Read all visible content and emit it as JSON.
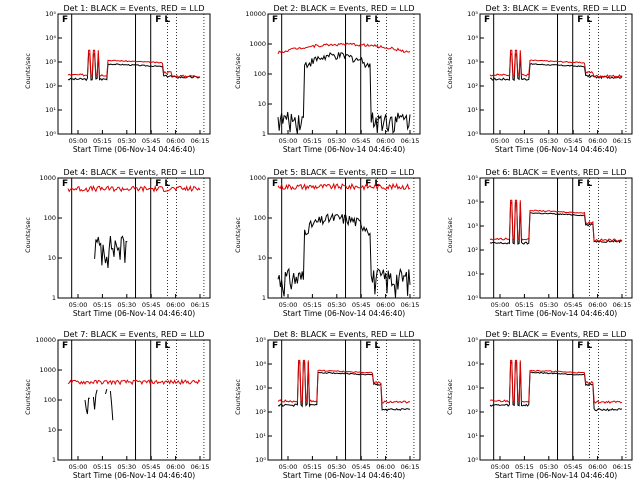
{
  "window": {
    "title": ""
  },
  "colors": {
    "events": "#000000",
    "lld": "#dd0000"
  },
  "panel_labels": {
    "edge_left": "F",
    "edge_right": "F",
    "edge_right2": "L"
  },
  "chart_data": [
    {
      "type": "line",
      "title": "Det 1: BLACK = Events, RED = LLD",
      "xlabel": "Start Time (06-Nov-14 04:46:40)",
      "ylabel": "Counts/sec",
      "scale": "log",
      "ylim": [
        1,
        100000
      ],
      "yticks": [
        "10⁰",
        "10¹",
        "10²",
        "10³",
        "10⁴",
        "10⁵"
      ],
      "xticks": [
        "05:00",
        "05:15",
        "05:30",
        "05:45",
        "06:00",
        "06:15"
      ],
      "series": [
        {
          "name": "Events",
          "kind": "det_spikes",
          "base": 150,
          "plateau": 500,
          "end": 180
        },
        {
          "name": "LLD",
          "kind": "det_spikes",
          "base": 220,
          "plateau": 700,
          "end": 200
        }
      ]
    },
    {
      "type": "line",
      "title": "Det 2: BLACK = Events, RED = LLD",
      "xlabel": "Start Time (06-Nov-14 04:46:40)",
      "ylabel": "Counts/sec",
      "scale": "log",
      "ylim": [
        1,
        10000
      ],
      "yticks": [
        "1",
        "10",
        "100",
        "1000",
        "10000"
      ],
      "xticks": [
        "05:00",
        "05:15",
        "05:30",
        "05:45",
        "06:00",
        "06:15"
      ],
      "series": [
        {
          "name": "Events",
          "kind": "hump",
          "level": 300
        },
        {
          "name": "LLD",
          "kind": "rise",
          "level": 700
        }
      ]
    },
    {
      "type": "line",
      "title": "Det 3: BLACK = Events, RED = LLD",
      "xlabel": "Start Time (06-Nov-14 04:46:40)",
      "ylabel": "Counts/sec",
      "scale": "log",
      "ylim": [
        1,
        100000
      ],
      "yticks": [
        "10⁰",
        "10¹",
        "10²",
        "10³",
        "10⁴",
        "10⁵"
      ],
      "xticks": [
        "05:00",
        "05:15",
        "05:30",
        "05:45",
        "06:00",
        "06:15"
      ],
      "series": [
        {
          "name": "Events",
          "kind": "det_spikes",
          "base": 150,
          "plateau": 500,
          "end": 180
        },
        {
          "name": "LLD",
          "kind": "det_spikes",
          "base": 220,
          "plateau": 700,
          "end": 200
        }
      ]
    },
    {
      "type": "line",
      "title": "Det 4: BLACK = Events, RED = LLD",
      "xlabel": "Start Time (06-Nov-14 04:46:40)",
      "ylabel": "Counts/sec",
      "scale": "log",
      "ylim": [
        1,
        1000
      ],
      "yticks": [
        "1",
        "10",
        "100",
        "1000"
      ],
      "xticks": [
        "05:00",
        "05:15",
        "05:30",
        "05:45",
        "06:00",
        "06:15"
      ],
      "series": [
        {
          "name": "Events",
          "kind": "noise_low",
          "level": 15
        },
        {
          "name": "LLD",
          "kind": "flat",
          "level": 400
        }
      ]
    },
    {
      "type": "line",
      "title": "Det 5: BLACK = Events, RED = LLD",
      "xlabel": "Start Time (06-Nov-14 04:46:40)",
      "ylabel": "Counts/sec",
      "scale": "log",
      "ylim": [
        1,
        1000
      ],
      "yticks": [
        "1",
        "10",
        "100",
        "1000"
      ],
      "xticks": [
        "05:00",
        "05:15",
        "05:30",
        "05:45",
        "06:00",
        "06:15"
      ],
      "series": [
        {
          "name": "Events",
          "kind": "hump",
          "level": 80
        },
        {
          "name": "LLD",
          "kind": "flat",
          "level": 450
        }
      ]
    },
    {
      "type": "line",
      "title": "Det 6: BLACK = Events, RED = LLD",
      "xlabel": "Start Time (06-Nov-14 04:46:40)",
      "ylabel": "Counts/sec",
      "scale": "log",
      "ylim": [
        1,
        100000
      ],
      "yticks": [
        "10⁰",
        "10¹",
        "10²",
        "10³",
        "10⁴",
        "10⁵"
      ],
      "xticks": [
        "05:00",
        "05:15",
        "05:30",
        "05:45",
        "06:00",
        "06:15"
      ],
      "series": [
        {
          "name": "Events",
          "kind": "det_spikes",
          "base": 150,
          "plateau": 2000,
          "end": 180
        },
        {
          "name": "LLD",
          "kind": "det_spikes",
          "base": 220,
          "plateau": 2500,
          "end": 200
        }
      ]
    },
    {
      "type": "line",
      "title": "Det 7: BLACK = Events, RED = LLD",
      "xlabel": "Start Time (06-Nov-14 04:46:40)",
      "ylabel": "Counts/sec",
      "scale": "log",
      "ylim": [
        1,
        10000
      ],
      "yticks": [
        "1",
        "10",
        "100",
        "1000",
        "10000"
      ],
      "xticks": [
        "05:00",
        "05:15",
        "05:30",
        "05:45",
        "06:00",
        "06:15"
      ],
      "series": [
        {
          "name": "Events",
          "kind": "sparse",
          "level": 150
        },
        {
          "name": "LLD",
          "kind": "flat",
          "level": 300
        }
      ]
    },
    {
      "type": "line",
      "title": "Det 8: BLACK = Events, RED = LLD",
      "xlabel": "Start Time (06-Nov-14 04:46:40)",
      "ylabel": "Counts/sec",
      "scale": "log",
      "ylim": [
        1,
        100000
      ],
      "yticks": [
        "10⁰",
        "10¹",
        "10²",
        "10³",
        "10⁴",
        "10⁵"
      ],
      "xticks": [
        "05:00",
        "05:15",
        "05:30",
        "05:45",
        "06:00",
        "06:15"
      ],
      "series": [
        {
          "name": "Events",
          "kind": "det_spikes",
          "base": 150,
          "plateau": 2500,
          "end": 100
        },
        {
          "name": "LLD",
          "kind": "det_spikes",
          "base": 220,
          "plateau": 3000,
          "end": 200
        }
      ]
    },
    {
      "type": "line",
      "title": "Det 9: BLACK = Events, RED = LLD",
      "xlabel": "Start Time (06-Nov-14 04:46:40)",
      "ylabel": "Counts/sec",
      "scale": "log",
      "ylim": [
        1,
        100000
      ],
      "yticks": [
        "10⁰",
        "10¹",
        "10²",
        "10³",
        "10⁴",
        "10⁵"
      ],
      "xticks": [
        "05:00",
        "05:15",
        "05:30",
        "05:45",
        "06:00",
        "06:15"
      ],
      "series": [
        {
          "name": "Events",
          "kind": "det_spikes",
          "base": 150,
          "plateau": 2500,
          "end": 100
        },
        {
          "name": "LLD",
          "kind": "det_spikes",
          "base": 220,
          "plateau": 3000,
          "end": 200
        }
      ]
    }
  ]
}
